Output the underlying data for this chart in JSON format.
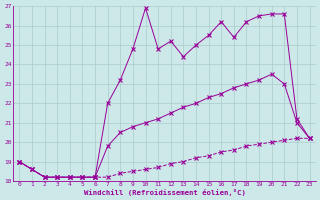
{
  "xlabel": "Windchill (Refroidissement éolien,°C)",
  "bg_color": "#cce8e8",
  "line_color": "#990099",
  "grid_color": "#aacccc",
  "xlim": [
    -0.5,
    23.5
  ],
  "ylim": [
    18,
    27
  ],
  "yticks": [
    18,
    19,
    20,
    21,
    22,
    23,
    24,
    25,
    26,
    27
  ],
  "xticks": [
    0,
    1,
    2,
    3,
    4,
    5,
    6,
    7,
    8,
    9,
    10,
    11,
    12,
    13,
    14,
    15,
    16,
    17,
    18,
    19,
    20,
    21,
    22,
    23
  ],
  "line1_x": [
    0,
    1,
    2,
    3,
    4,
    5,
    6,
    7,
    8,
    9,
    10,
    11,
    12,
    13,
    14,
    15,
    16,
    17,
    18,
    19,
    20,
    21,
    22,
    23
  ],
  "line1_y": [
    19.0,
    18.6,
    18.2,
    18.2,
    18.2,
    18.2,
    18.2,
    18.2,
    18.4,
    18.5,
    18.6,
    18.7,
    18.9,
    19.0,
    19.2,
    19.3,
    19.5,
    19.6,
    19.8,
    19.9,
    20.0,
    20.1,
    20.2,
    20.2
  ],
  "line2_x": [
    0,
    1,
    2,
    3,
    4,
    5,
    6,
    7,
    8,
    9,
    10,
    11,
    12,
    13,
    14,
    15,
    16,
    17,
    18,
    19,
    20,
    21,
    22,
    23
  ],
  "line2_y": [
    19.0,
    18.6,
    18.2,
    18.2,
    18.2,
    18.2,
    18.2,
    19.8,
    20.5,
    20.8,
    21.0,
    21.2,
    21.5,
    21.8,
    22.0,
    22.3,
    22.5,
    22.8,
    23.0,
    23.2,
    23.5,
    23.0,
    21.0,
    20.2
  ],
  "line3_x": [
    0,
    1,
    2,
    3,
    4,
    5,
    6,
    7,
    8,
    9,
    10,
    11,
    12,
    13,
    14,
    15,
    16,
    17,
    18,
    19,
    20,
    21,
    22,
    23
  ],
  "line3_y": [
    19.0,
    18.6,
    18.2,
    18.2,
    18.2,
    18.2,
    18.2,
    22.0,
    23.2,
    24.8,
    26.9,
    24.8,
    25.2,
    24.4,
    25.0,
    25.5,
    26.2,
    25.4,
    26.2,
    26.5,
    26.6,
    26.6,
    21.2,
    20.2
  ]
}
